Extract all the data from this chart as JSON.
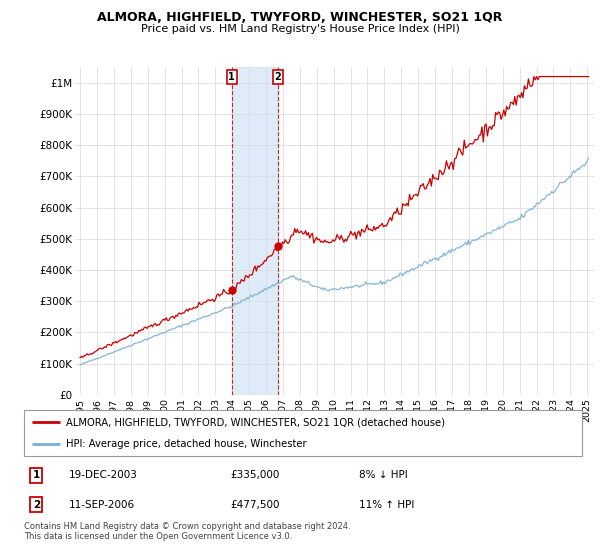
{
  "title": "ALMORA, HIGHFIELD, TWYFORD, WINCHESTER, SO21 1QR",
  "subtitle": "Price paid vs. HM Land Registry's House Price Index (HPI)",
  "legend_line1": "ALMORA, HIGHFIELD, TWYFORD, WINCHESTER, SO21 1QR (detached house)",
  "legend_line2": "HPI: Average price, detached house, Winchester",
  "annotation1_date": "19-DEC-2003",
  "annotation1_price": "£335,000",
  "annotation1_hpi": "8% ↓ HPI",
  "annotation2_date": "11-SEP-2006",
  "annotation2_price": "£477,500",
  "annotation2_hpi": "11% ↑ HPI",
  "footer": "Contains HM Land Registry data © Crown copyright and database right 2024.\nThis data is licensed under the Open Government Licence v3.0.",
  "ylim_top": 1050000,
  "yticks": [
    0,
    100000,
    200000,
    300000,
    400000,
    500000,
    600000,
    700000,
    800000,
    900000,
    1000000
  ],
  "ytick_labels": [
    "£0",
    "£100K",
    "£200K",
    "£300K",
    "£400K",
    "£500K",
    "£600K",
    "£700K",
    "£800K",
    "£900K",
    "£1M"
  ],
  "red_color": "#cc0000",
  "blue_color": "#7aafd4",
  "shade_color": "#d0e4f7",
  "purchase1_x": 2003.97,
  "purchase1_y": 335000,
  "purchase2_x": 2006.71,
  "purchase2_y": 477500,
  "xlim": [
    1994.7,
    2025.4
  ],
  "xtick_years": [
    1995,
    1996,
    1997,
    1998,
    1999,
    2000,
    2001,
    2002,
    2003,
    2004,
    2005,
    2006,
    2007,
    2008,
    2009,
    2010,
    2011,
    2012,
    2013,
    2014,
    2015,
    2016,
    2017,
    2018,
    2019,
    2020,
    2021,
    2022,
    2023,
    2024,
    2025
  ]
}
